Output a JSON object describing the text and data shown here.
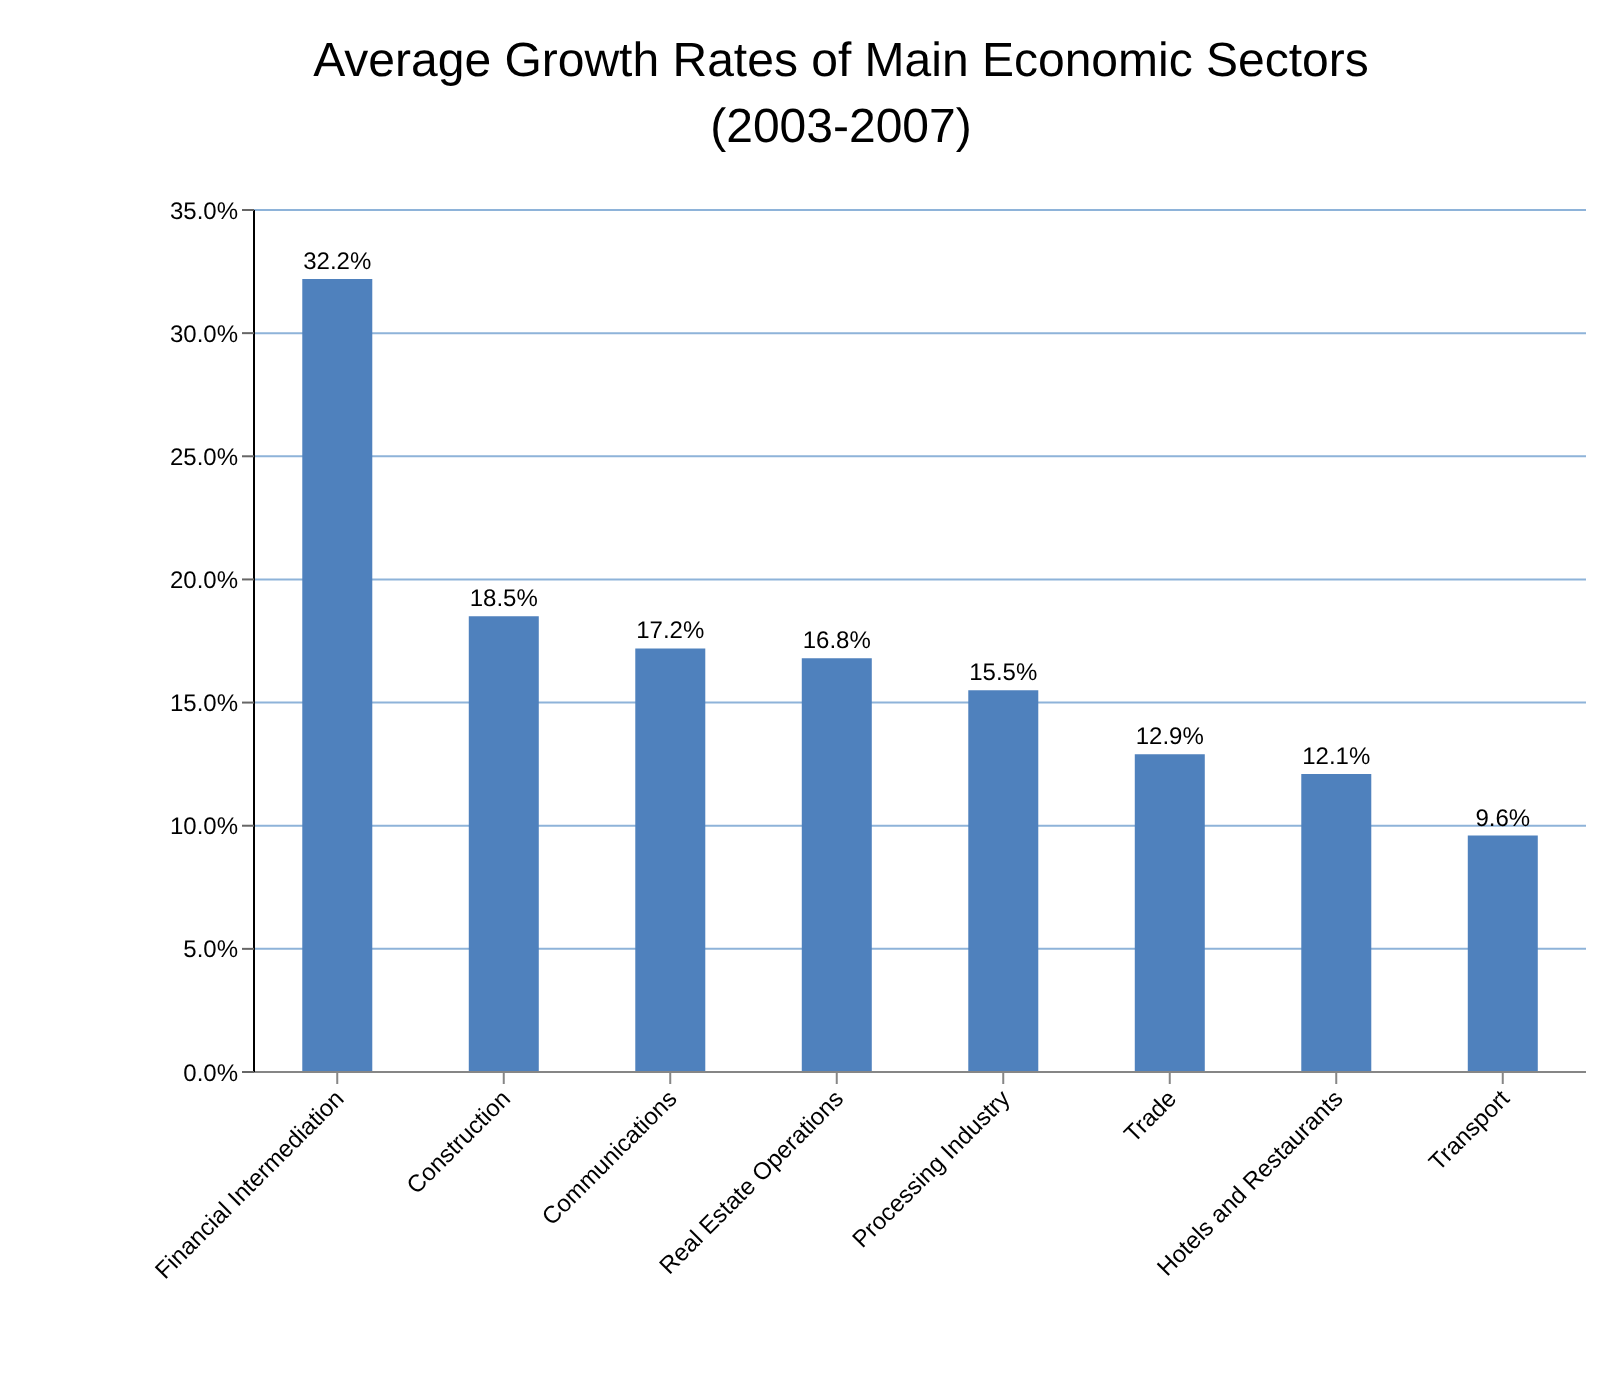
{
  "chart_data": {
    "type": "bar",
    "title": "Average Growth Rates of Main Economic Sectors\n(2003-2007)",
    "categories": [
      "Financial Intermediation",
      "Construction",
      "Communications",
      "Real Estate Operations",
      "Processing Industry",
      "Trade",
      "Hotels and Restaurants",
      "Transport"
    ],
    "values": [
      32.2,
      18.5,
      17.2,
      16.8,
      15.5,
      12.9,
      12.1,
      9.6
    ],
    "value_labels": [
      "32.2%",
      "18.5%",
      "17.2%",
      "16.8%",
      "15.5%",
      "12.9%",
      "12.1%",
      "9.6%"
    ],
    "color": "#4f81bd",
    "ylim": [
      0,
      35
    ],
    "yticks": [
      {
        "value": 0,
        "label": "0.0%"
      },
      {
        "value": 5,
        "label": "5.0%"
      },
      {
        "value": 10,
        "label": "10.0%"
      },
      {
        "value": 15,
        "label": "15.0%"
      },
      {
        "value": 20,
        "label": "20.0%"
      },
      {
        "value": 25,
        "label": "25.0%"
      },
      {
        "value": 30,
        "label": "30.0%"
      },
      {
        "value": 35,
        "label": "35.0%"
      }
    ],
    "grid": "y"
  }
}
